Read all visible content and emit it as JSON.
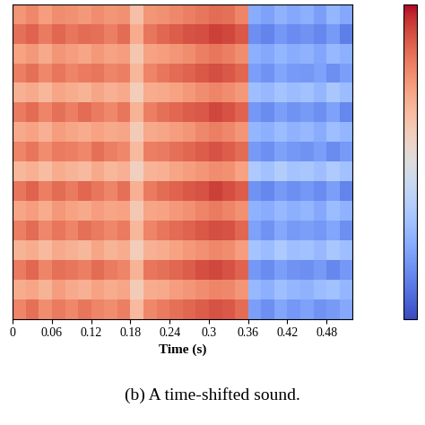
{
  "chart_data": {
    "type": "heatmap",
    "xlabel": "Time (s)",
    "caption": "(b) A time-shifted sound.",
    "color": "coolwarm",
    "tick_labels": "x",
    "xlim": [
      0,
      0.52
    ],
    "xticks": [
      0,
      0.06,
      0.12,
      0.18,
      0.24,
      0.3,
      0.36,
      0.42,
      0.48
    ],
    "ylim": [
      0,
      16
    ],
    "x_edges": [
      0,
      0.02,
      0.04,
      0.06,
      0.08,
      0.1,
      0.12,
      0.14,
      0.16,
      0.18,
      0.2,
      0.22,
      0.24,
      0.26,
      0.28,
      0.3,
      0.32,
      0.34,
      0.36,
      0.38,
      0.4,
      0.42,
      0.44,
      0.46,
      0.48,
      0.5,
      0.52
    ],
    "y_edges": [
      0,
      1,
      2,
      3,
      4,
      5,
      6,
      7,
      8,
      9,
      10,
      11,
      12,
      13,
      14,
      15,
      16
    ],
    "color_range": [
      0,
      1
    ],
    "color_ticks": [],
    "cells": [
      [
        0.8,
        0.84,
        0.78,
        0.82,
        0.79,
        0.83,
        0.8,
        0.78,
        0.81,
        0.66,
        0.79,
        0.82,
        0.84,
        0.86,
        0.88,
        0.9,
        0.89,
        0.85,
        0.2,
        0.16,
        0.22,
        0.18,
        0.21,
        0.17,
        0.19,
        0.23
      ],
      [
        0.7,
        0.72,
        0.68,
        0.74,
        0.71,
        0.69,
        0.73,
        0.7,
        0.72,
        0.6,
        0.7,
        0.71,
        0.74,
        0.76,
        0.78,
        0.8,
        0.79,
        0.76,
        0.28,
        0.25,
        0.3,
        0.27,
        0.26,
        0.29,
        0.31,
        0.27
      ],
      [
        0.82,
        0.86,
        0.8,
        0.84,
        0.83,
        0.81,
        0.85,
        0.82,
        0.8,
        0.68,
        0.83,
        0.84,
        0.86,
        0.88,
        0.91,
        0.92,
        0.9,
        0.87,
        0.18,
        0.15,
        0.2,
        0.17,
        0.16,
        0.19,
        0.14,
        0.18
      ],
      [
        0.68,
        0.7,
        0.66,
        0.71,
        0.69,
        0.67,
        0.72,
        0.68,
        0.7,
        0.59,
        0.69,
        0.7,
        0.73,
        0.75,
        0.77,
        0.79,
        0.78,
        0.74,
        0.32,
        0.29,
        0.34,
        0.3,
        0.31,
        0.28,
        0.33,
        0.3
      ],
      [
        0.81,
        0.85,
        0.79,
        0.83,
        0.8,
        0.84,
        0.82,
        0.79,
        0.82,
        0.67,
        0.8,
        0.83,
        0.85,
        0.87,
        0.89,
        0.91,
        0.9,
        0.86,
        0.21,
        0.17,
        0.23,
        0.19,
        0.2,
        0.18,
        0.22,
        0.16
      ],
      [
        0.72,
        0.74,
        0.7,
        0.75,
        0.73,
        0.71,
        0.74,
        0.72,
        0.73,
        0.61,
        0.72,
        0.73,
        0.75,
        0.77,
        0.8,
        0.82,
        0.8,
        0.77,
        0.26,
        0.24,
        0.28,
        0.25,
        0.27,
        0.23,
        0.29,
        0.26
      ],
      [
        0.83,
        0.87,
        0.81,
        0.85,
        0.82,
        0.86,
        0.83,
        0.8,
        0.84,
        0.69,
        0.82,
        0.85,
        0.87,
        0.89,
        0.9,
        0.93,
        0.91,
        0.88,
        0.17,
        0.14,
        0.19,
        0.16,
        0.18,
        0.15,
        0.2,
        0.13
      ],
      [
        0.67,
        0.69,
        0.65,
        0.7,
        0.68,
        0.66,
        0.71,
        0.67,
        0.69,
        0.58,
        0.68,
        0.69,
        0.72,
        0.74,
        0.76,
        0.78,
        0.77,
        0.73,
        0.34,
        0.31,
        0.36,
        0.32,
        0.33,
        0.3,
        0.35,
        0.31
      ],
      [
        0.8,
        0.83,
        0.78,
        0.82,
        0.81,
        0.79,
        0.84,
        0.81,
        0.79,
        0.66,
        0.81,
        0.82,
        0.84,
        0.86,
        0.88,
        0.9,
        0.88,
        0.85,
        0.19,
        0.16,
        0.21,
        0.18,
        0.17,
        0.2,
        0.15,
        0.19
      ],
      [
        0.71,
        0.73,
        0.69,
        0.74,
        0.72,
        0.7,
        0.73,
        0.71,
        0.72,
        0.6,
        0.71,
        0.72,
        0.74,
        0.76,
        0.79,
        0.81,
        0.79,
        0.76,
        0.27,
        0.25,
        0.29,
        0.26,
        0.28,
        0.24,
        0.3,
        0.27
      ],
      [
        0.82,
        0.85,
        0.8,
        0.84,
        0.81,
        0.85,
        0.82,
        0.79,
        0.83,
        0.68,
        0.81,
        0.84,
        0.86,
        0.88,
        0.89,
        0.92,
        0.9,
        0.87,
        0.18,
        0.15,
        0.2,
        0.17,
        0.19,
        0.16,
        0.21,
        0.14
      ],
      [
        0.69,
        0.71,
        0.67,
        0.72,
        0.7,
        0.68,
        0.72,
        0.69,
        0.71,
        0.59,
        0.7,
        0.71,
        0.73,
        0.75,
        0.78,
        0.8,
        0.78,
        0.75,
        0.3,
        0.28,
        0.32,
        0.29,
        0.31,
        0.27,
        0.33,
        0.29
      ],
      [
        0.81,
        0.84,
        0.79,
        0.83,
        0.8,
        0.82,
        0.83,
        0.8,
        0.81,
        0.67,
        0.8,
        0.83,
        0.85,
        0.87,
        0.89,
        0.91,
        0.89,
        0.86,
        0.2,
        0.17,
        0.22,
        0.19,
        0.18,
        0.21,
        0.16,
        0.2
      ],
      [
        0.73,
        0.75,
        0.71,
        0.76,
        0.74,
        0.72,
        0.75,
        0.73,
        0.74,
        0.62,
        0.73,
        0.74,
        0.76,
        0.78,
        0.81,
        0.83,
        0.81,
        0.78,
        0.25,
        0.23,
        0.27,
        0.24,
        0.26,
        0.22,
        0.28,
        0.25
      ],
      [
        0.84,
        0.87,
        0.82,
        0.86,
        0.83,
        0.85,
        0.84,
        0.81,
        0.85,
        0.7,
        0.83,
        0.86,
        0.88,
        0.9,
        0.91,
        0.93,
        0.92,
        0.89,
        0.16,
        0.13,
        0.18,
        0.15,
        0.17,
        0.14,
        0.19,
        0.12
      ],
      [
        0.76,
        0.79,
        0.74,
        0.78,
        0.77,
        0.75,
        0.78,
        0.76,
        0.77,
        0.64,
        0.76,
        0.77,
        0.79,
        0.81,
        0.83,
        0.85,
        0.84,
        0.8,
        0.24,
        0.21,
        0.26,
        0.23,
        0.25,
        0.2,
        0.27,
        0.23
      ]
    ]
  }
}
